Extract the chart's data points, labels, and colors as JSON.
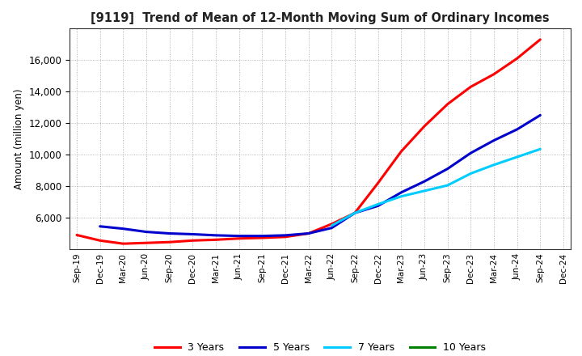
{
  "title": "[9119]  Trend of Mean of 12-Month Moving Sum of Ordinary Incomes",
  "ylabel": "Amount (million yen)",
  "background_color": "#ffffff",
  "grid_color": "#999999",
  "x_labels": [
    "Sep-19",
    "Dec-19",
    "Mar-20",
    "Jun-20",
    "Sep-20",
    "Dec-20",
    "Mar-21",
    "Jun-21",
    "Sep-21",
    "Dec-21",
    "Mar-22",
    "Jun-22",
    "Sep-22",
    "Dec-22",
    "Mar-23",
    "Jun-23",
    "Sep-23",
    "Dec-23",
    "Mar-24",
    "Jun-24",
    "Sep-24",
    "Dec-24"
  ],
  "series": [
    {
      "name": "3 Years",
      "color": "#ff0000",
      "values": [
        4900,
        4550,
        4350,
        4400,
        4450,
        4550,
        4600,
        4680,
        4720,
        4780,
        5000,
        5600,
        6300,
        8200,
        10200,
        11800,
        13200,
        14300,
        15100,
        16100,
        17300,
        null
      ]
    },
    {
      "name": "5 Years",
      "color": "#0000cc",
      "values": [
        null,
        5450,
        5300,
        5100,
        5000,
        4950,
        4880,
        4840,
        4840,
        4880,
        5000,
        5350,
        6300,
        6750,
        7600,
        8300,
        9100,
        10100,
        10900,
        11600,
        12500,
        null
      ]
    },
    {
      "name": "7 Years",
      "color": "#00ccff",
      "values": [
        null,
        null,
        null,
        null,
        null,
        null,
        null,
        null,
        null,
        null,
        null,
        5500,
        6300,
        6850,
        7350,
        7700,
        8050,
        8800,
        9350,
        9850,
        10350,
        null
      ]
    },
    {
      "name": "10 Years",
      "color": "#008000",
      "values": [
        null,
        null,
        null,
        null,
        null,
        null,
        null,
        null,
        null,
        null,
        null,
        null,
        null,
        null,
        null,
        null,
        null,
        null,
        null,
        null,
        null,
        null
      ]
    }
  ],
  "ylim": [
    4000,
    18000
  ],
  "yticks": [
    6000,
    8000,
    10000,
    12000,
    14000,
    16000
  ],
  "legend_entries": [
    "3 Years",
    "5 Years",
    "7 Years",
    "10 Years"
  ],
  "legend_colors": [
    "#ff0000",
    "#0000cc",
    "#00ccff",
    "#008000"
  ]
}
